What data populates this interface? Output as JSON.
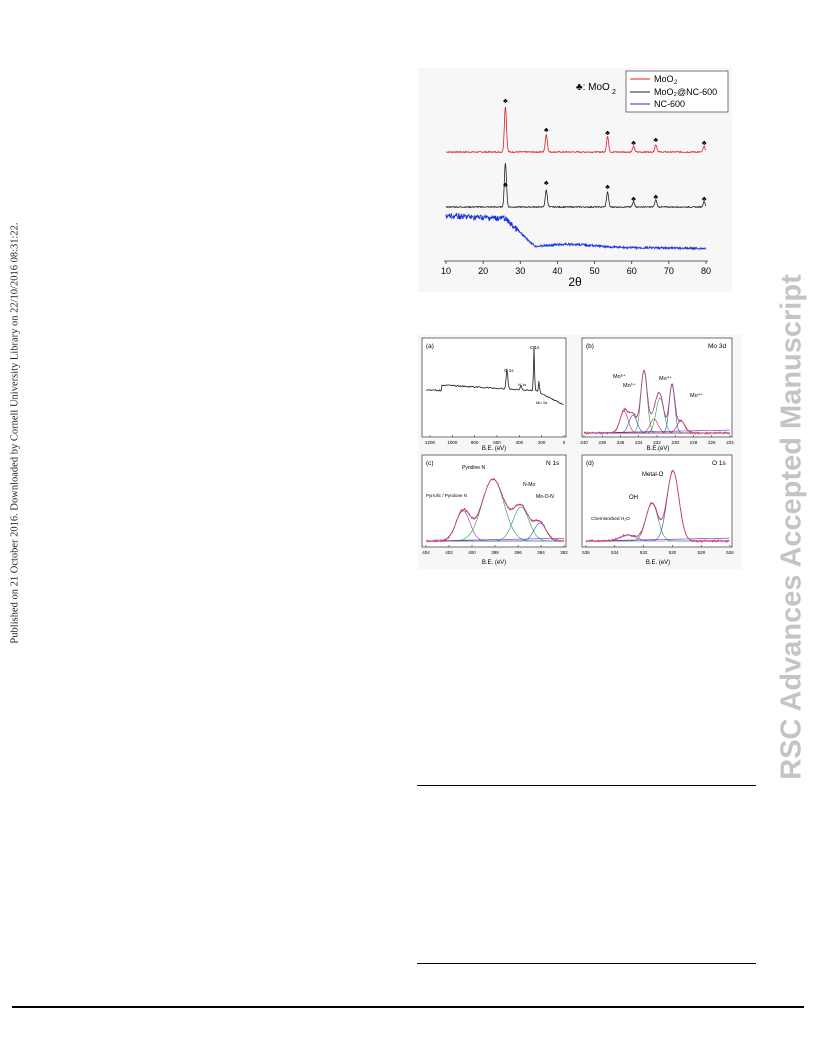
{
  "side_note": "Published on 21 October 2016. Downloaded by Cornell University Library on 22/10/2016 08:31:22.",
  "watermark": "RSC Advances Accepted Manuscript",
  "xrd": {
    "marker_label": "♣: MoO",
    "marker_sub": "2",
    "legend": [
      {
        "label": "MoO",
        "sub": "2",
        "color": "#e02020"
      },
      {
        "label": "MoO₂@NC-600",
        "sub": "",
        "color": "#222222"
      },
      {
        "label": "NC-600",
        "sub": "",
        "color": "#1530d8"
      }
    ],
    "x_ticks": [
      "10",
      "20",
      "30",
      "40",
      "50",
      "60",
      "70",
      "80"
    ],
    "xlabel": "2θ",
    "peak_marker": "♣"
  },
  "xps": {
    "a": {
      "panel": "(a)",
      "peaks": [
        "O 1s",
        "C 1s",
        "N 1s",
        "Mo 3d"
      ],
      "x_ticks": [
        "1200",
        "1000",
        "800",
        "600",
        "400",
        "200",
        "0"
      ],
      "xlabel": "B.E. (eV)"
    },
    "b": {
      "panel": "(b)",
      "title": "Mo 3d",
      "labels": [
        "Mo⁶⁺",
        "Mo⁵⁺",
        "Mo⁴⁺",
        "Mo⁴⁺",
        "Mo⁶⁺"
      ],
      "x_ticks": [
        "240",
        "238",
        "236",
        "234",
        "232",
        "230",
        "228",
        "226",
        "224"
      ],
      "xlabel": "B.E.(eV)"
    },
    "c": {
      "panel": "(c)",
      "title": "N 1s",
      "labels": [
        "Pyridine N",
        "Pyrrolic / Pyridone N",
        "N-Mo",
        "Mo-O-N"
      ],
      "x_ticks": [
        "404",
        "402",
        "400",
        "398",
        "396",
        "394",
        "392"
      ],
      "xlabel": "B.E. (eV)"
    },
    "d": {
      "panel": "(d)",
      "title": "O 1s",
      "labels": [
        "Metal-O",
        "OH",
        "Chemisorbed H₂O"
      ],
      "x_ticks": [
        "536",
        "534",
        "532",
        "530",
        "528",
        "526"
      ],
      "xlabel": "B.E. (eV)"
    }
  }
}
